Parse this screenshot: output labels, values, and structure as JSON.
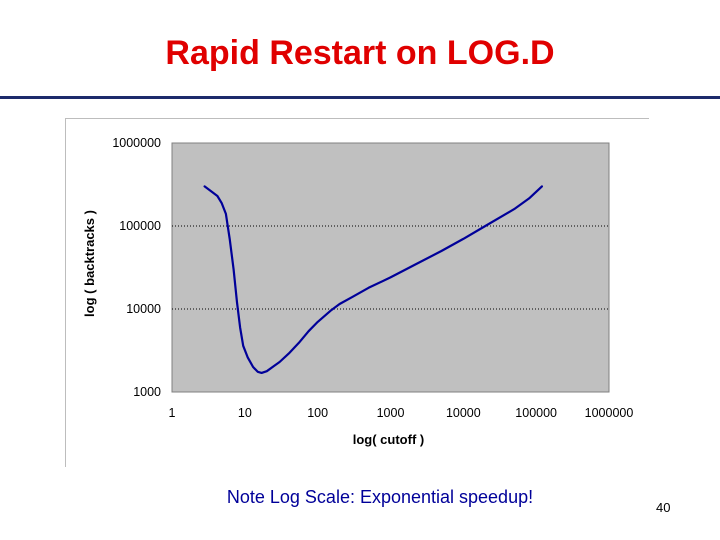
{
  "slide": {
    "title": "Rapid Restart on LOG.D",
    "note": "Note  Log  Scale: Exponential speedup!",
    "page_number": "40"
  },
  "colors": {
    "title": "#e00000",
    "rule": "#1c2a6b",
    "plot_area": "#c0c0c0",
    "series_line": "#000099",
    "grid": "#000000",
    "note": "#000099"
  },
  "chart_data": {
    "type": "line",
    "title": "",
    "xlabel": "log( cutoff )",
    "ylabel": "log ( backtracks )",
    "x_scale": "log",
    "y_scale": "log",
    "xlim": [
      1,
      1000000
    ],
    "ylim": [
      1000,
      1000000
    ],
    "x_ticks": [
      "1",
      "10",
      "100",
      "1000",
      "10000",
      "100000",
      "1000000"
    ],
    "y_ticks": [
      "1000000",
      "100000",
      "10000",
      "1000"
    ],
    "grid": "horizontal dotted",
    "legend": "none",
    "series": [
      {
        "values": [
          [
            2.8,
            300000
          ],
          [
            3.5,
            260000
          ],
          [
            4.2,
            230000
          ],
          [
            4.8,
            190000
          ],
          [
            5.5,
            140000
          ],
          [
            6.2,
            70000
          ],
          [
            7.0,
            30000
          ],
          [
            7.8,
            12000
          ],
          [
            8.6,
            6000
          ],
          [
            9.5,
            3600
          ],
          [
            11,
            2600
          ],
          [
            13,
            2000
          ],
          [
            15,
            1750
          ],
          [
            17,
            1700
          ],
          [
            20,
            1780
          ],
          [
            25,
            2050
          ],
          [
            30,
            2300
          ],
          [
            40,
            2900
          ],
          [
            55,
            3900
          ],
          [
            75,
            5400
          ],
          [
            100,
            7000
          ],
          [
            150,
            9500
          ],
          [
            200,
            11500
          ],
          [
            300,
            14000
          ],
          [
            500,
            18000
          ],
          [
            1000,
            24000
          ],
          [
            2000,
            33000
          ],
          [
            5000,
            50000
          ],
          [
            10000,
            70000
          ],
          [
            20000,
            100000
          ],
          [
            50000,
            160000
          ],
          [
            80000,
            215000
          ],
          [
            120000,
            300000
          ]
        ]
      }
    ]
  }
}
